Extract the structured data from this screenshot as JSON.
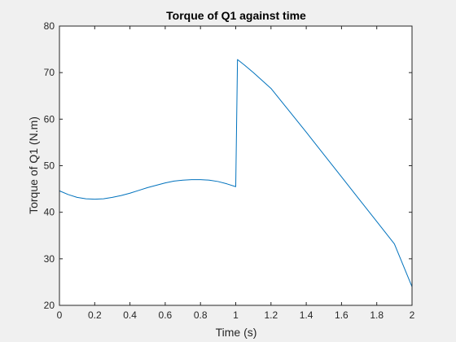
{
  "chart_data": {
    "type": "line",
    "title": "Torque of Q1 against time",
    "xlabel": "Time (s)",
    "ylabel": "Torque of Q1 (N.m)",
    "xlim": [
      0,
      2
    ],
    "ylim": [
      20,
      80
    ],
    "xticks": [
      0,
      0.2,
      0.4,
      0.6,
      0.8,
      1,
      1.2,
      1.4,
      1.6,
      1.8,
      2
    ],
    "xtick_labels": [
      "0",
      "0.2",
      "0.4",
      "0.6",
      "0.8",
      "1",
      "1.2",
      "1.4",
      "1.6",
      "1.8",
      "2"
    ],
    "yticks": [
      20,
      30,
      40,
      50,
      60,
      70,
      80
    ],
    "ytick_labels": [
      "20",
      "30",
      "40",
      "50",
      "60",
      "70",
      "80"
    ],
    "grid": false,
    "series": [
      {
        "color": "#0072bd",
        "x": [
          0,
          0.05,
          0.1,
          0.15,
          0.2,
          0.25,
          0.3,
          0.35,
          0.4,
          0.45,
          0.5,
          0.55,
          0.6,
          0.65,
          0.7,
          0.75,
          0.8,
          0.85,
          0.9,
          0.95,
          1.0,
          1.01,
          1.05,
          1.1,
          1.2,
          1.3,
          1.4,
          1.5,
          1.6,
          1.7,
          1.8,
          1.9,
          2.0
        ],
        "y": [
          44.6,
          43.8,
          43.2,
          42.9,
          42.8,
          42.9,
          43.2,
          43.6,
          44.1,
          44.7,
          45.3,
          45.8,
          46.3,
          46.7,
          46.9,
          47.0,
          47.0,
          46.9,
          46.6,
          46.1,
          45.5,
          72.8,
          71.6,
          70.0,
          66.6,
          61.9,
          57.2,
          52.4,
          47.6,
          42.8,
          38.0,
          33.2,
          24.0
        ]
      }
    ]
  }
}
